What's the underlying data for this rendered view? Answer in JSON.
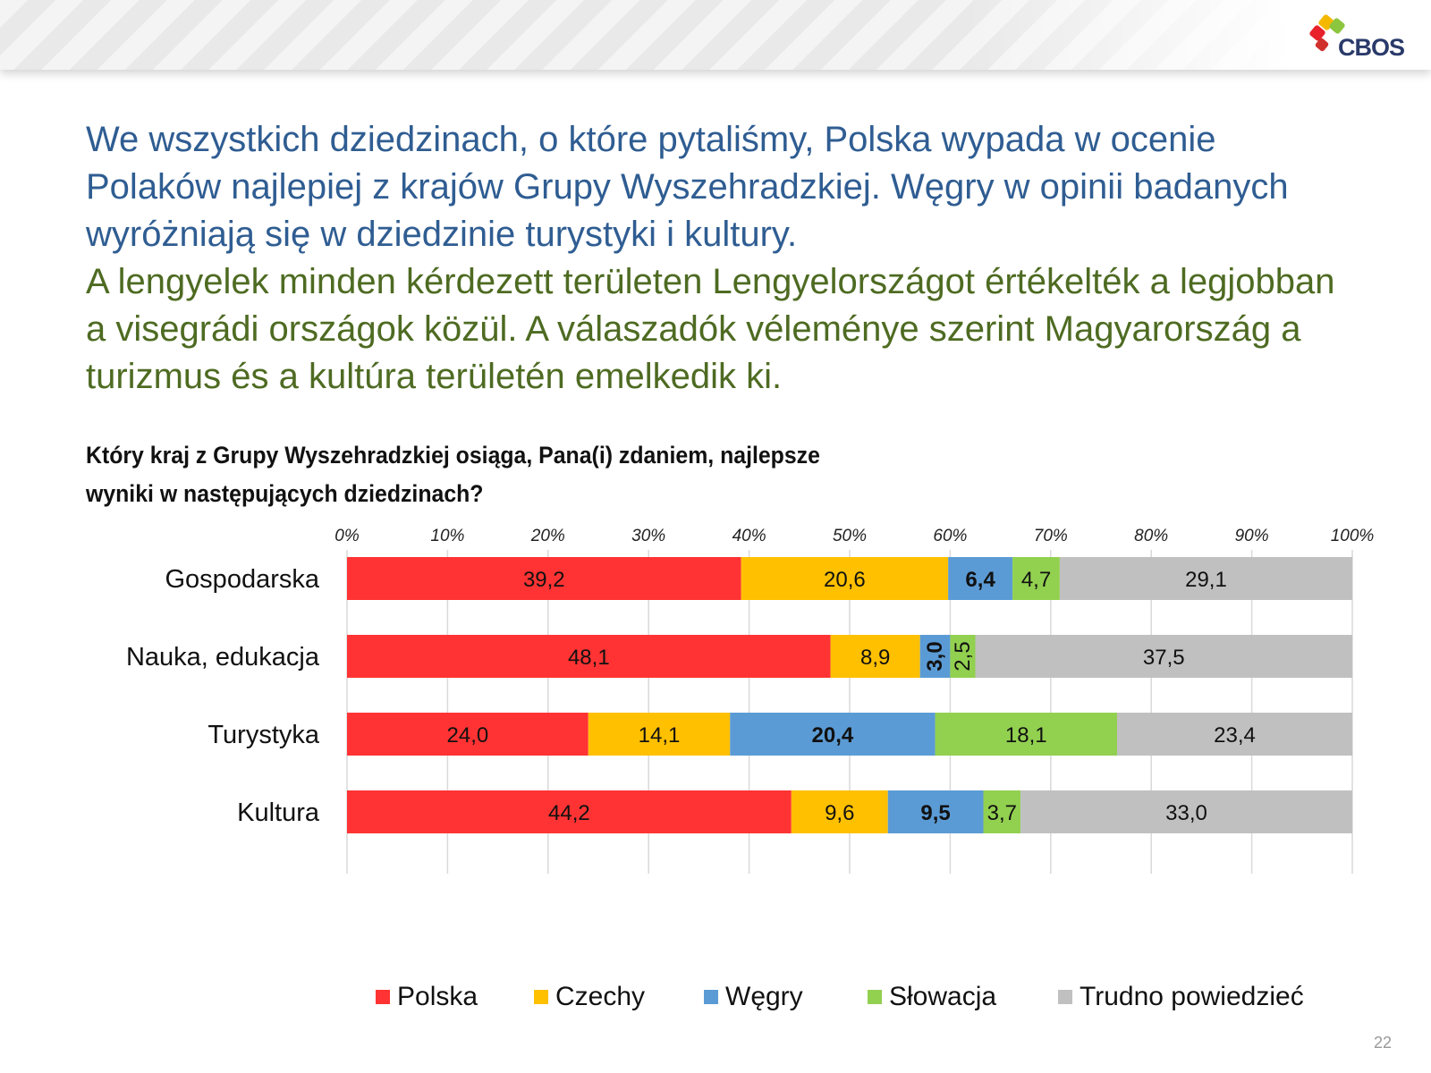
{
  "headline": {
    "polish": "We wszystkich dziedzinach, o które pytaliśmy, Polska wypada w ocenie Polaków najlepiej z krajów Grupy Wyszehradzkiej. Węgry w opinii badanych wyróżniają się w dziedzinie turystyki i kultury.",
    "hungarian": "A lengyelek minden kérdezett területen Lengyelországot értékelték a legjobban a visegrádi országok közül. A válaszadók véleménye szerint Magyarország a turizmus és a kultúra területén emelkedik ki."
  },
  "question": "Który kraj z Grupy Wyszehradzkiej osiąga, Pana(i) zdaniem, najlepsze wyniki w następujących dziedzinach?",
  "logo": {
    "text": "CBOS"
  },
  "page_number": "22",
  "colors": {
    "Polska": "#ff3333",
    "Czechy": "#ffc000",
    "Węgry": "#5b9bd5",
    "Słowacja": "#92d050",
    "Trudno powiedzieć": "#c0c0c0"
  },
  "chart_data": {
    "type": "bar",
    "orientation": "horizontal",
    "stacked": true,
    "title": "Który kraj z Grupy Wyszehradzkiej osiąga, Pana(i) zdaniem, najlepsze wyniki w następujących dziedzinach?",
    "categories": [
      "Gospodarska",
      "Nauka, edukacja",
      "Turystyka",
      "Kultura"
    ],
    "series": [
      {
        "name": "Polska",
        "values": [
          39.2,
          48.1,
          24.0,
          44.2
        ],
        "labels": [
          "39,2",
          "48,1",
          "24,0",
          "44,2"
        ]
      },
      {
        "name": "Czechy",
        "values": [
          20.6,
          8.9,
          14.1,
          9.6
        ],
        "labels": [
          "20,6",
          "8,9",
          "14,1",
          "9,6"
        ]
      },
      {
        "name": "Węgry",
        "values": [
          6.4,
          3.0,
          20.4,
          9.5
        ],
        "labels": [
          "6,4",
          "3,0",
          "20,4",
          "9,5"
        ]
      },
      {
        "name": "Słowacja",
        "values": [
          4.7,
          2.5,
          18.1,
          3.7
        ],
        "labels": [
          "4,7",
          "2,5",
          "18,1",
          "3,7"
        ]
      },
      {
        "name": "Trudno powiedzieć",
        "values": [
          29.1,
          37.5,
          23.4,
          33.0
        ],
        "labels": [
          "29,1",
          "37,5",
          "23,4",
          "33,0"
        ]
      }
    ],
    "x_ticks": [
      "0%",
      "10%",
      "20%",
      "30%",
      "40%",
      "50%",
      "60%",
      "70%",
      "80%",
      "90%",
      "100%"
    ],
    "xlim": [
      0,
      100
    ],
    "xlabel": "",
    "ylabel": "",
    "grid": "vertical",
    "legend": "bottom",
    "bold_series": "Węgry",
    "vertical_label_segments": [
      "Nauka, edukacja|Węgry",
      "Nauka, edukacja|Słowacja"
    ]
  }
}
